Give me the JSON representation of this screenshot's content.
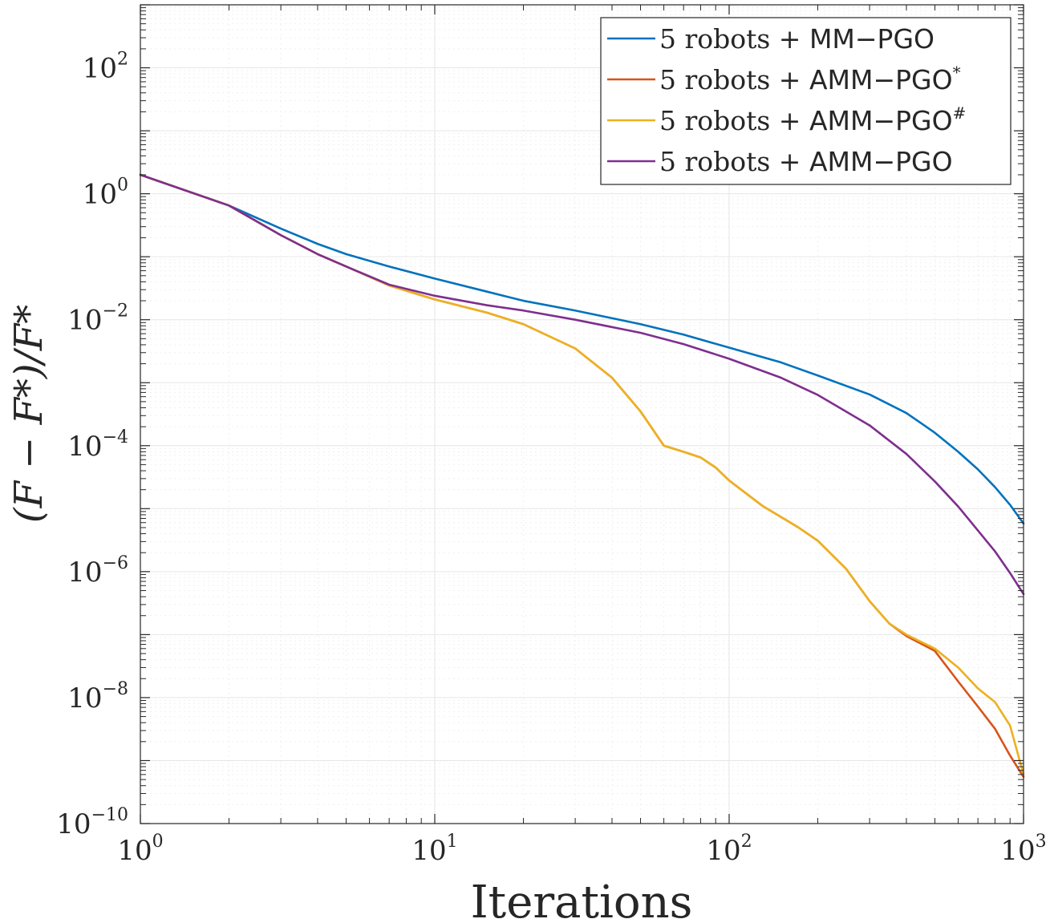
{
  "chart_data": {
    "type": "line",
    "title": "",
    "xlabel": "Iterations",
    "ylabel": "(F − F*)/F*",
    "xscale": "log",
    "yscale": "log",
    "xlim": [
      1,
      1000
    ],
    "ylim": [
      1e-10,
      1000
    ],
    "grid": true,
    "legend_position": "top-right",
    "x_ticks": [
      {
        "base": "10",
        "exp": "0",
        "value": 1
      },
      {
        "base": "10",
        "exp": "1",
        "value": 10
      },
      {
        "base": "10",
        "exp": "2",
        "value": 100
      },
      {
        "base": "10",
        "exp": "3",
        "value": 1000
      }
    ],
    "y_ticks": [
      {
        "base": "10",
        "exp": "−10",
        "value": 1e-10
      },
      {
        "base": "10",
        "exp": "−8",
        "value": 1e-08
      },
      {
        "base": "10",
        "exp": "−6",
        "value": 1e-06
      },
      {
        "base": "10",
        "exp": "−4",
        "value": 0.0001
      },
      {
        "base": "10",
        "exp": "−2",
        "value": 0.01
      },
      {
        "base": "10",
        "exp": "0",
        "value": 1
      },
      {
        "base": "10",
        "exp": "2",
        "value": 100
      }
    ],
    "series": [
      {
        "name": "MM",
        "legend_prefix": "5 robots + ",
        "legend_method": "MM−PGO",
        "legend_sup": "",
        "color": "#0072BD",
        "points": [
          [
            1,
            2.0
          ],
          [
            2,
            0.65
          ],
          [
            3,
            0.28
          ],
          [
            4,
            0.16
          ],
          [
            5,
            0.11
          ],
          [
            7,
            0.07
          ],
          [
            10,
            0.045
          ],
          [
            15,
            0.028
          ],
          [
            20,
            0.02
          ],
          [
            30,
            0.014
          ],
          [
            50,
            0.0085
          ],
          [
            70,
            0.0058
          ],
          [
            100,
            0.0036
          ],
          [
            150,
            0.0021
          ],
          [
            200,
            0.0013
          ],
          [
            300,
            0.00065
          ],
          [
            400,
            0.00033
          ],
          [
            500,
            0.00016
          ],
          [
            600,
            8e-05
          ],
          [
            700,
            4.2e-05
          ],
          [
            800,
            2.2e-05
          ],
          [
            900,
            1.15e-05
          ],
          [
            1000,
            5.8e-06
          ]
        ]
      },
      {
        "name": "AMM-star",
        "legend_prefix": "5 robots + ",
        "legend_method": "AMM−PGO",
        "legend_sup": "*",
        "color": "#D95319",
        "points": [
          [
            1,
            2.0
          ],
          [
            2,
            0.65
          ],
          [
            3,
            0.22
          ],
          [
            4,
            0.11
          ],
          [
            5,
            0.07
          ],
          [
            7,
            0.035
          ],
          [
            10,
            0.021
          ],
          [
            15,
            0.013
          ],
          [
            20,
            0.0085
          ],
          [
            30,
            0.0035
          ],
          [
            40,
            0.0012
          ],
          [
            50,
            0.00035
          ],
          [
            60,
            0.0001
          ],
          [
            70,
            8e-05
          ],
          [
            80,
            6.5e-05
          ],
          [
            90,
            4.5e-05
          ],
          [
            100,
            2.8e-05
          ],
          [
            130,
            1.1e-05
          ],
          [
            170,
            5.2e-06
          ],
          [
            200,
            3.1e-06
          ],
          [
            250,
            1.1e-06
          ],
          [
            300,
            3.4e-07
          ],
          [
            350,
            1.5e-07
          ],
          [
            400,
            9.5e-08
          ],
          [
            500,
            5.5e-08
          ],
          [
            600,
            1.8e-08
          ],
          [
            700,
            7.2e-09
          ],
          [
            800,
            3.2e-09
          ],
          [
            900,
            1.2e-09
          ],
          [
            1000,
            5.5e-10
          ]
        ]
      },
      {
        "name": "AMM-hash",
        "legend_prefix": "5 robots + ",
        "legend_method": "AMM−PGO",
        "legend_sup": "#",
        "color": "#EDB120",
        "points": [
          [
            1,
            2.0
          ],
          [
            2,
            0.65
          ],
          [
            3,
            0.22
          ],
          [
            4,
            0.11
          ],
          [
            5,
            0.07
          ],
          [
            7,
            0.035
          ],
          [
            10,
            0.021
          ],
          [
            15,
            0.013
          ],
          [
            20,
            0.0085
          ],
          [
            30,
            0.0035
          ],
          [
            40,
            0.0012
          ],
          [
            50,
            0.00035
          ],
          [
            60,
            0.0001
          ],
          [
            70,
            8e-05
          ],
          [
            80,
            6.5e-05
          ],
          [
            90,
            4.5e-05
          ],
          [
            100,
            2.8e-05
          ],
          [
            130,
            1.1e-05
          ],
          [
            170,
            5.2e-06
          ],
          [
            200,
            3.1e-06
          ],
          [
            250,
            1.1e-06
          ],
          [
            300,
            3.4e-07
          ],
          [
            350,
            1.5e-07
          ],
          [
            400,
            1e-07
          ],
          [
            500,
            6e-08
          ],
          [
            600,
            3e-08
          ],
          [
            700,
            1.4e-08
          ],
          [
            800,
            8.5e-09
          ],
          [
            900,
            3.6e-09
          ],
          [
            1000,
            6e-10
          ]
        ]
      },
      {
        "name": "AMM",
        "legend_prefix": "5 robots + ",
        "legend_method": "AMM−PGO",
        "legend_sup": "",
        "color": "#7E2F8E",
        "points": [
          [
            1,
            2.0
          ],
          [
            2,
            0.65
          ],
          [
            3,
            0.22
          ],
          [
            4,
            0.11
          ],
          [
            5,
            0.07
          ],
          [
            7,
            0.036
          ],
          [
            10,
            0.024
          ],
          [
            15,
            0.017
          ],
          [
            20,
            0.014
          ],
          [
            30,
            0.01
          ],
          [
            50,
            0.0062
          ],
          [
            70,
            0.0041
          ],
          [
            100,
            0.0024
          ],
          [
            150,
            0.0012
          ],
          [
            200,
            0.00064
          ],
          [
            300,
            0.00021
          ],
          [
            400,
            7.4e-05
          ],
          [
            500,
            2.7e-05
          ],
          [
            600,
            1.08e-05
          ],
          [
            700,
            4.5e-06
          ],
          [
            800,
            2.1e-06
          ],
          [
            900,
            9.5e-07
          ],
          [
            1000,
            4.4e-07
          ]
        ]
      }
    ]
  }
}
